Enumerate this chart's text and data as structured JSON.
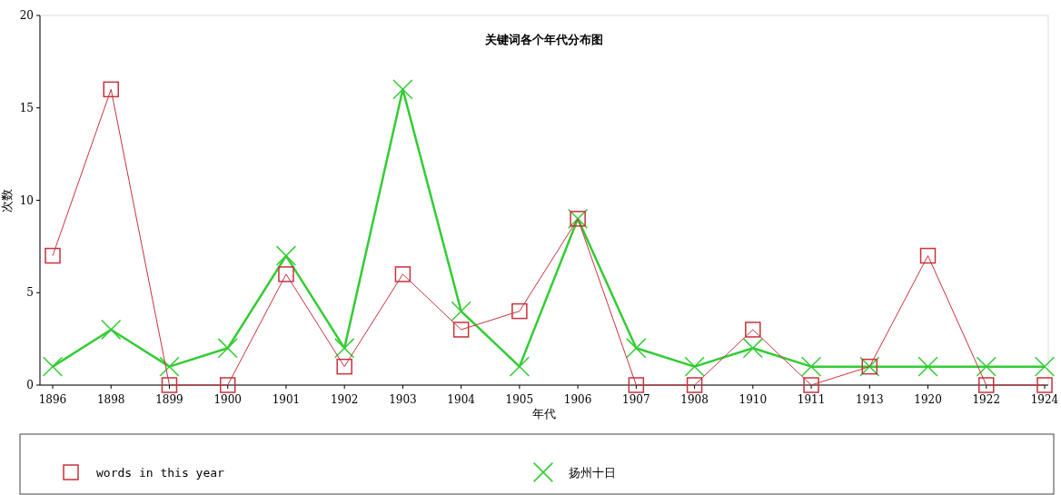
{
  "chart_data": {
    "type": "line",
    "title": "关键词各个年代分布图",
    "xlabel": "年代",
    "ylabel": "次数",
    "categories": [
      "1896",
      "1898",
      "1899",
      "1900",
      "1901",
      "1902",
      "1903",
      "1904",
      "1905",
      "1906",
      "1907",
      "1908",
      "1910",
      "1911",
      "1913",
      "1920",
      "1922",
      "1924"
    ],
    "series": [
      {
        "name": "words in this year",
        "color": "#c8323c",
        "marker": "square",
        "values": [
          7,
          16,
          0,
          0,
          6,
          1,
          6,
          3,
          4,
          9,
          0,
          0,
          3,
          0,
          1,
          7,
          0,
          0
        ]
      },
      {
        "name": "扬州十日",
        "color": "#33cc33",
        "marker": "cross",
        "values": [
          1,
          3,
          1,
          2,
          7,
          2,
          16,
          4,
          1,
          9,
          2,
          1,
          2,
          1,
          1,
          1,
          1,
          1
        ]
      }
    ],
    "ylim": [
      0,
      20
    ],
    "yticks": [
      0,
      5,
      10,
      15,
      20
    ],
    "grid": false,
    "legend": "bottom"
  }
}
